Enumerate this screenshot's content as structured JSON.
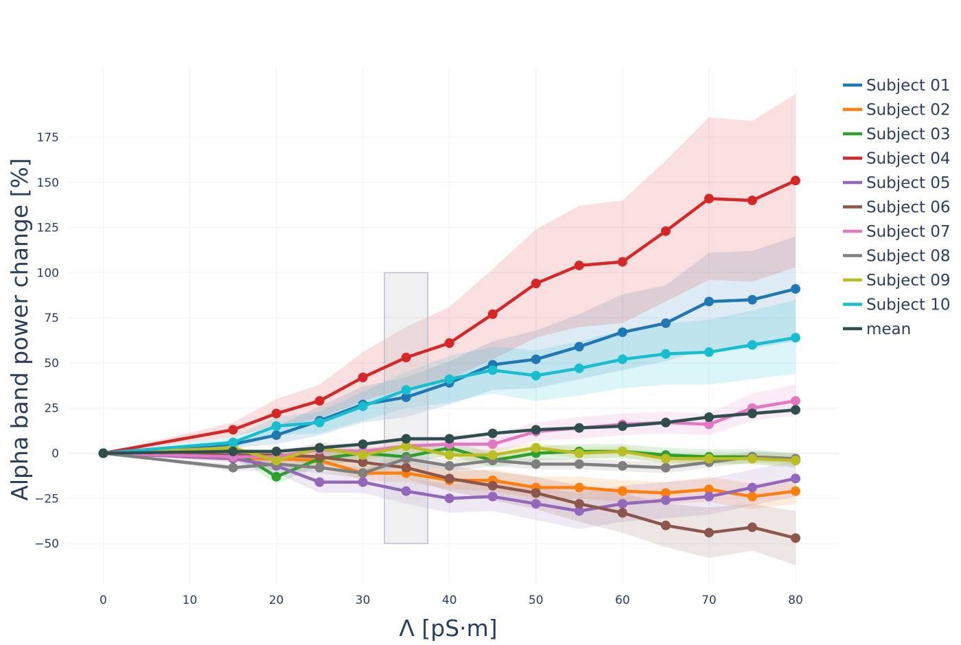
{
  "chart_data": {
    "type": "line",
    "xlabel": "Λ [pS·m]",
    "ylabel": "Alpha band power change [%]",
    "x_ticks": [
      0,
      10,
      20,
      30,
      40,
      50,
      60,
      70,
      80
    ],
    "y_ticks": [
      -50,
      -25,
      0,
      25,
      50,
      75,
      100,
      125,
      150,
      175
    ],
    "xlim": [
      -4,
      85
    ],
    "ylim": [
      -72,
      213
    ],
    "grid": true,
    "legend_position": "right",
    "x": [
      0,
      15,
      20,
      25,
      30,
      35,
      40,
      45,
      50,
      55,
      60,
      65,
      70,
      75,
      80
    ],
    "highlight_region": {
      "x": [
        32.5,
        37.5
      ],
      "y": [
        -50,
        100
      ]
    },
    "series": [
      {
        "name": "Subject 01",
        "color": "#1f77b4",
        "values": [
          0,
          5,
          10,
          18,
          27,
          31,
          39,
          49,
          52,
          59,
          67,
          72,
          84,
          85,
          91
        ],
        "lower": [
          0,
          3,
          5,
          10,
          17,
          20,
          27,
          35,
          36,
          41,
          46,
          51,
          58,
          58,
          62
        ],
        "upper": [
          0,
          7,
          15,
          26,
          37,
          42,
          51,
          62,
          68,
          77,
          88,
          93,
          111,
          112,
          120
        ]
      },
      {
        "name": "Subject 02",
        "color": "#ff7f0e",
        "values": [
          0,
          -3,
          -3,
          -4,
          -11,
          -11,
          -15,
          -15,
          -19,
          -19,
          -21,
          -22,
          -20,
          -24,
          -21
        ],
        "lower": [
          0,
          -5,
          -6,
          -7,
          -15,
          -16,
          -20,
          -21,
          -25,
          -25,
          -27,
          -28,
          -27,
          -31,
          -28
        ],
        "upper": [
          0,
          -1,
          0,
          -1,
          -7,
          -6,
          -10,
          -9,
          -13,
          -13,
          -15,
          -16,
          -13,
          -17,
          -14
        ]
      },
      {
        "name": "Subject 03",
        "color": "#2ca02c",
        "values": [
          0,
          2,
          -13,
          -3,
          0,
          -2,
          3,
          -4,
          0,
          1,
          1,
          -1,
          -2,
          -2,
          -4
        ],
        "lower": [
          0,
          -1,
          -17,
          -7,
          -4,
          -6,
          -1,
          -8,
          -4,
          -3,
          -3,
          -5,
          -6,
          -6,
          -8
        ],
        "upper": [
          0,
          5,
          -9,
          1,
          4,
          2,
          7,
          0,
          4,
          5,
          5,
          3,
          2,
          2,
          0
        ]
      },
      {
        "name": "Subject 04",
        "color": "#d62728",
        "values": [
          0,
          13,
          22,
          29,
          42,
          53,
          61,
          77,
          94,
          104,
          106,
          123,
          141,
          140,
          151
        ],
        "lower": [
          0,
          9,
          15,
          19,
          29,
          36,
          41,
          52,
          64,
          70,
          72,
          84,
          96,
          95,
          103
        ],
        "upper": [
          0,
          17,
          30,
          38,
          56,
          70,
          81,
          102,
          124,
          137,
          140,
          162,
          186,
          184,
          199
        ]
      },
      {
        "name": "Subject 05",
        "color": "#9467bd",
        "values": [
          0,
          -3,
          -7,
          -16,
          -16,
          -21,
          -25,
          -24,
          -28,
          -32,
          -28,
          -26,
          -24,
          -19,
          -14
        ],
        "lower": [
          0,
          -5,
          -11,
          -22,
          -22,
          -28,
          -33,
          -32,
          -37,
          -42,
          -38,
          -36,
          -34,
          -29,
          -24
        ],
        "upper": [
          0,
          -1,
          -3,
          -10,
          -10,
          -14,
          -17,
          -16,
          -19,
          -22,
          -18,
          -16,
          -14,
          -9,
          -4
        ]
      },
      {
        "name": "Subject 06",
        "color": "#8c564b",
        "values": [
          0,
          -1,
          -1,
          -2,
          -5,
          -8,
          -14,
          -18,
          -22,
          -28,
          -33,
          -40,
          -44,
          -41,
          -47
        ],
        "lower": [
          0,
          -3,
          -4,
          -6,
          -10,
          -14,
          -21,
          -26,
          -31,
          -38,
          -44,
          -52,
          -58,
          -54,
          -62
        ],
        "upper": [
          0,
          1,
          2,
          2,
          0,
          -2,
          -7,
          -10,
          -13,
          -18,
          -22,
          -28,
          -30,
          -28,
          -32
        ]
      },
      {
        "name": "Subject 07",
        "color": "#e377c2",
        "values": [
          0,
          -2,
          -2,
          2,
          1,
          4,
          5,
          5,
          12,
          14,
          16,
          17,
          16,
          25,
          29
        ],
        "lower": [
          0,
          -4,
          -5,
          -2,
          -3,
          -1,
          0,
          0,
          7,
          8,
          10,
          11,
          10,
          18,
          21
        ],
        "upper": [
          0,
          0,
          1,
          6,
          5,
          9,
          10,
          10,
          17,
          20,
          22,
          23,
          22,
          33,
          38
        ]
      },
      {
        "name": "Subject 08",
        "color": "#7f7f7f",
        "values": [
          0,
          -8,
          -6,
          -8,
          -11,
          -3,
          -7,
          -4,
          -6,
          -6,
          -7,
          -8,
          -5,
          -2,
          -3
        ],
        "lower": [
          0,
          -10,
          -9,
          -11,
          -14,
          -6,
          -10,
          -7,
          -9,
          -9,
          -10,
          -11,
          -8,
          -5,
          -6
        ],
        "upper": [
          0,
          -6,
          -3,
          -5,
          -8,
          0,
          -4,
          -1,
          -3,
          -3,
          -4,
          -5,
          -2,
          1,
          0
        ]
      },
      {
        "name": "Subject 09",
        "color": "#bcbd22",
        "values": [
          0,
          3,
          -4,
          3,
          -1,
          4,
          -1,
          -1,
          3,
          0,
          1,
          -3,
          -3,
          -3,
          -4
        ],
        "lower": [
          0,
          1,
          -7,
          0,
          -4,
          1,
          -4,
          -4,
          0,
          -3,
          -2,
          -6,
          -6,
          -6,
          -7
        ],
        "upper": [
          0,
          5,
          -1,
          6,
          2,
          7,
          2,
          2,
          6,
          3,
          4,
          0,
          0,
          0,
          -1
        ]
      },
      {
        "name": "Subject 10",
        "color": "#17becf",
        "values": [
          0,
          6,
          15,
          17,
          26,
          35,
          41,
          46,
          43,
          47,
          52,
          55,
          56,
          60,
          64
        ],
        "lower": [
          0,
          3,
          10,
          11,
          18,
          25,
          28,
          33,
          29,
          32,
          36,
          38,
          38,
          41,
          44
        ],
        "upper": [
          0,
          9,
          20,
          23,
          34,
          45,
          54,
          59,
          57,
          62,
          68,
          72,
          74,
          79,
          85
        ]
      },
      {
        "name": "mean",
        "color": "#2f4f4f",
        "values": [
          0,
          1,
          1,
          3,
          5,
          8,
          8,
          11,
          13,
          14,
          15,
          17,
          20,
          22,
          24
        ],
        "lower": [
          0,
          0,
          0,
          2,
          4,
          7,
          7,
          10,
          12,
          13,
          14,
          16,
          19,
          21,
          23
        ],
        "upper": [
          0,
          2,
          2,
          4,
          6,
          9,
          9,
          12,
          14,
          15,
          16,
          18,
          21,
          23,
          25
        ]
      }
    ]
  }
}
